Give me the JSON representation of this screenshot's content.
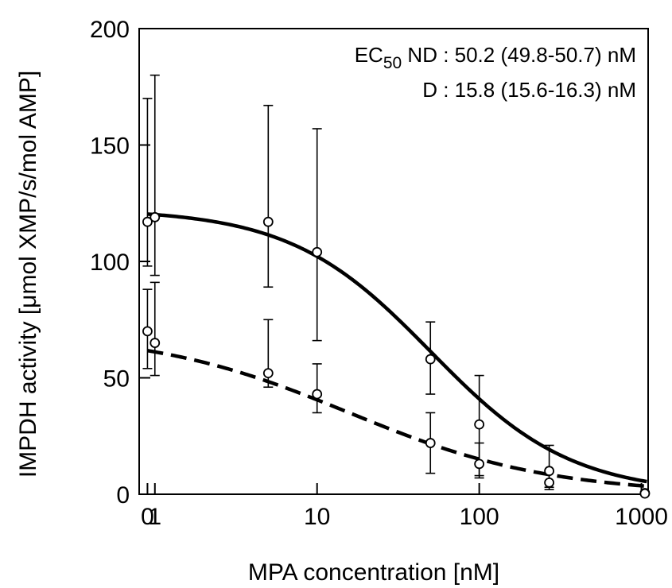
{
  "chart_data": {
    "type": "scatter",
    "title": "",
    "xlabel": "MPA concentration [nM]",
    "ylabel": "IMPDH activity [μmol XMP/s/mol AMP]",
    "x_scale": "log",
    "xlim": [
      0.8,
      1100
    ],
    "ylim": [
      0,
      200
    ],
    "x_ticks": [
      {
        "value": 0.9,
        "label": "0"
      },
      {
        "value": 1,
        "label": "1"
      },
      {
        "value": 10,
        "label": "10"
      },
      {
        "value": 100,
        "label": "100"
      },
      {
        "value": 1000,
        "label": "1000"
      }
    ],
    "y_ticks": [
      0,
      50,
      100,
      150,
      200
    ],
    "grid": false,
    "annotations": {
      "ec_prefix": "EC",
      "ec_sub": "50",
      "nd_text": " ND : 50.2 (49.8-50.7) nM",
      "d_text": "D : 15.8 (15.6-16.3) nM"
    },
    "series": [
      {
        "line_style": "solid",
        "points": [
          {
            "x": 0.9,
            "y": 117,
            "err_lo": 98,
            "err_hi": 170
          },
          {
            "x": 1,
            "y": 119,
            "err_lo": 94,
            "err_hi": 180
          },
          {
            "x": 5,
            "y": 117,
            "err_lo": 89,
            "err_hi": 167
          },
          {
            "x": 10,
            "y": 104,
            "err_lo": 66,
            "err_hi": 157
          },
          {
            "x": 50,
            "y": 58,
            "err_lo": 43,
            "err_hi": 74
          },
          {
            "x": 100,
            "y": 30,
            "err_lo": 8,
            "err_hi": 51
          },
          {
            "x": 270,
            "y": 10,
            "err_lo": 3,
            "err_hi": 21
          },
          {
            "x": 1050,
            "y": 0.5,
            "err_lo": 0,
            "err_hi": 1
          }
        ],
        "fit": {
          "top": 122.5,
          "ec50": 50.2,
          "hill": 1.0
        }
      },
      {
        "line_style": "dashed",
        "points": [
          {
            "x": 0.9,
            "y": 70,
            "err_lo": 54,
            "err_hi": 88
          },
          {
            "x": 1,
            "y": 65,
            "err_lo": 51,
            "err_hi": 91
          },
          {
            "x": 5,
            "y": 52,
            "err_lo": 46,
            "err_hi": 75
          },
          {
            "x": 10,
            "y": 43,
            "err_lo": 35,
            "err_hi": 56
          },
          {
            "x": 50,
            "y": 22,
            "err_lo": 9,
            "err_hi": 35
          },
          {
            "x": 100,
            "y": 13,
            "err_lo": 7,
            "err_hi": 22
          },
          {
            "x": 270,
            "y": 5,
            "err_lo": 2,
            "err_hi": 10
          },
          {
            "x": 1050,
            "y": 0.3,
            "err_lo": 0,
            "err_hi": 0.6
          }
        ],
        "fit": {
          "top": 70,
          "ec50": 15.8,
          "hill": 0.7
        }
      }
    ]
  }
}
